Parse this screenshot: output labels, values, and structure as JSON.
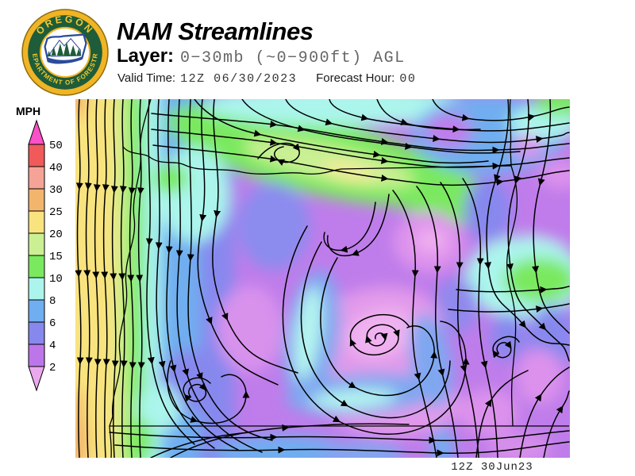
{
  "header": {
    "title": "NAM Streamlines",
    "layer_label": "Layer:",
    "layer_value": "0−30mb (~0−900ft) AGL",
    "valid_time_label": "Valid Time:",
    "valid_time_value": "12Z 06/30/2023",
    "forecast_hour_label": "Forecast Hour:",
    "forecast_hour_value": "00"
  },
  "logo": {
    "top_text": "OREGON",
    "bottom_text": "DEPARTMENT OF FORESTRY",
    "seal_green": "#1E5C3A",
    "seal_gold": "#F0B424",
    "emblem_blue": "#2B4B9B"
  },
  "legend": {
    "units": "MPH",
    "ticks": [
      "50",
      "40",
      "30",
      "25",
      "20",
      "15",
      "10",
      "8",
      "6",
      "4",
      "2"
    ],
    "band_colors": [
      "#F05A5A",
      "#F5A396",
      "#F3B56E",
      "#F8E37E",
      "#CBF094",
      "#7AE95F",
      "#ABF5EC",
      "#6FAEF0",
      "#8788EE",
      "#BD76EA"
    ],
    "above_max_color": "#FA50C8",
    "below_min_color": "#EBA9ED"
  },
  "map": {
    "timestamp_label": "12Z 30Jun23",
    "base_color": "#BF7DEB"
  }
}
